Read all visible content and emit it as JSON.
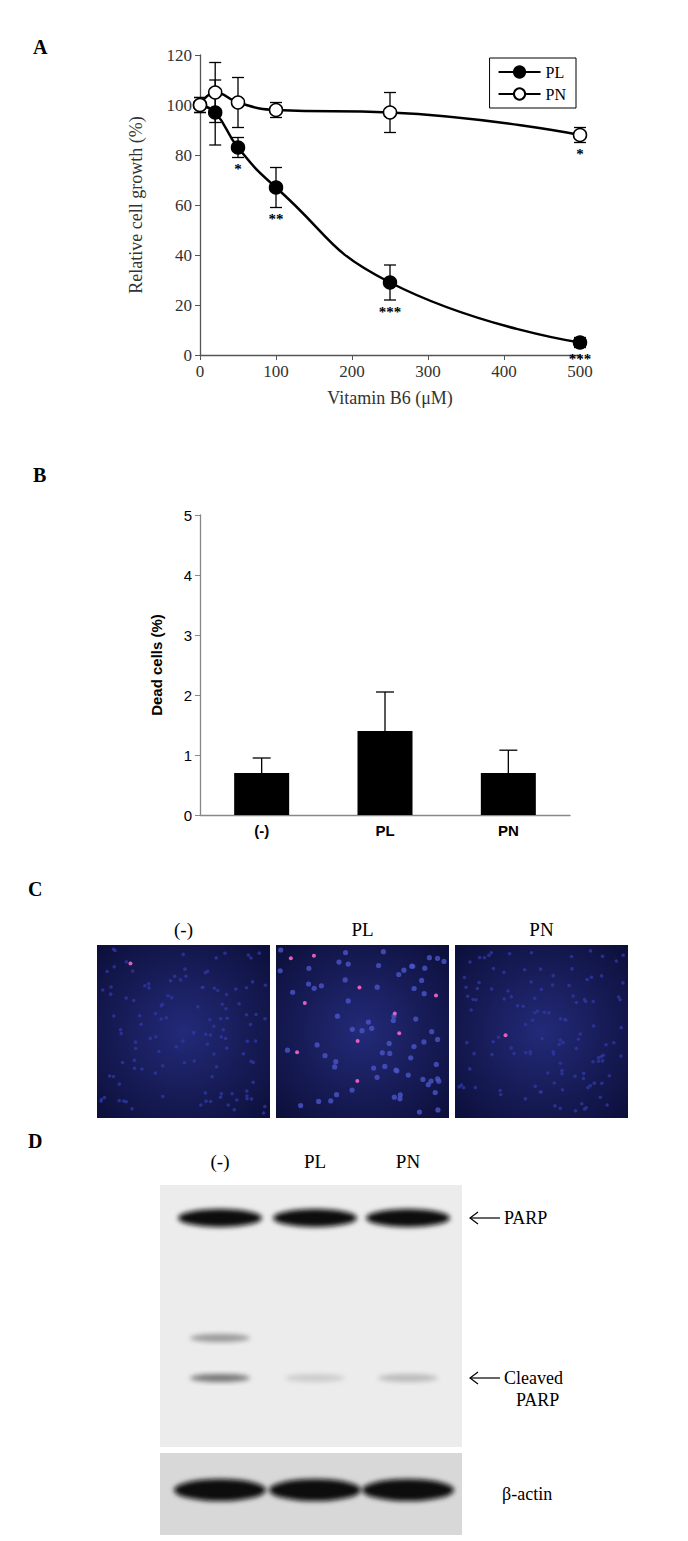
{
  "chart_data": [
    {
      "type": "line",
      "title": "A",
      "x_label": "Vitamin B6 (μM)",
      "y_label": "Relative cell growth (%)",
      "x": [
        0,
        20,
        50,
        100,
        250,
        500
      ],
      "series": [
        {
          "name": "PL",
          "color": "#000000",
          "marker": "filled",
          "line_style": "solid",
          "values": [
            100,
            97,
            83,
            67,
            29,
            5
          ],
          "errors": [
            3,
            13,
            4,
            8,
            7,
            2
          ],
          "significance": [
            null,
            null,
            "*",
            "**",
            "***",
            "***"
          ]
        },
        {
          "name": "PN",
          "color": "#000000",
          "marker": "open",
          "line_style": "solid",
          "values": [
            100,
            105,
            101,
            98,
            97,
            88
          ],
          "errors": [
            3,
            12,
            10,
            3,
            8,
            3
          ],
          "significance": [
            null,
            null,
            null,
            null,
            null,
            "*"
          ]
        }
      ],
      "xlim": [
        0,
        500
      ],
      "xticks": [
        0,
        100,
        200,
        300,
        400,
        500
      ],
      "ylim": [
        0,
        120
      ],
      "yticks": [
        0,
        20,
        40,
        60,
        80,
        100,
        120
      ],
      "grid": false,
      "legend": "upper right"
    },
    {
      "type": "bar",
      "title": "B",
      "y_label": "Dead cells (%)",
      "categories": [
        "(-)",
        "PL",
        "PN"
      ],
      "values": [
        0.7,
        1.4,
        0.7
      ],
      "errors": [
        0.25,
        0.65,
        0.38
      ],
      "color": "#000000",
      "ylim": [
        0,
        5
      ],
      "yticks": [
        0,
        1,
        2,
        3,
        4,
        5
      ],
      "grid": false
    }
  ],
  "images": {
    "title": "C",
    "panels": [
      "(-)",
      "PL",
      "PN"
    ]
  },
  "blot": {
    "title": "D",
    "lanes": [
      "(-)",
      "PL",
      "PN"
    ],
    "bands": [
      [
        "PARP"
      ],
      [
        "Cleaved",
        "PARP"
      ]
    ],
    "loading_control": "β-actin"
  }
}
